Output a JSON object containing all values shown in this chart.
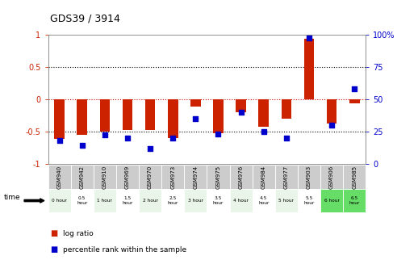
{
  "title": "GDS39 / 3914",
  "samples": [
    "GSM940",
    "GSM942",
    "GSM910",
    "GSM969",
    "GSM970",
    "GSM973",
    "GSM974",
    "GSM975",
    "GSM976",
    "GSM984",
    "GSM977",
    "GSM903",
    "GSM906",
    "GSM985"
  ],
  "time_labels": [
    "0 hour",
    "0.5\nhour",
    "1 hour",
    "1.5\nhour",
    "2 hour",
    "2.5\nhour",
    "3 hour",
    "3.5\nhour",
    "4 hour",
    "4.5\nhour",
    "5 hour",
    "5.5\nhour",
    "6 hour",
    "6.5\nhour"
  ],
  "log_ratio": [
    -0.62,
    -0.55,
    -0.5,
    -0.48,
    -0.48,
    -0.6,
    -0.12,
    -0.53,
    -0.2,
    -0.43,
    -0.3,
    0.93,
    -0.38,
    -0.07
  ],
  "percentile": [
    18,
    14,
    22,
    20,
    12,
    20,
    35,
    23,
    40,
    25,
    20,
    97,
    30,
    58
  ],
  "bar_color": "#cc2200",
  "dot_color": "#0000cc",
  "bg_color": "#ffffff",
  "ylim_left": [
    -1.0,
    1.0
  ],
  "ylim_right": [
    0,
    100
  ],
  "yticks_left": [
    -1,
    -0.5,
    0,
    0.5,
    1
  ],
  "ytick_labels_left": [
    "-1",
    "-0.5",
    "0",
    "0.5",
    "1"
  ],
  "yticks_right": [
    0,
    25,
    50,
    75,
    100
  ],
  "ytick_labels_right": [
    "0",
    "25",
    "50",
    "75",
    "100%"
  ],
  "time_colors": [
    "#e8f5e8",
    "#ffffff",
    "#e8f5e8",
    "#ffffff",
    "#e8f5e8",
    "#ffffff",
    "#e8f5e8",
    "#ffffff",
    "#e8f5e8",
    "#ffffff",
    "#e8f5e8",
    "#ffffff",
    "#66dd66",
    "#66dd66"
  ],
  "header_color": "#cccccc"
}
